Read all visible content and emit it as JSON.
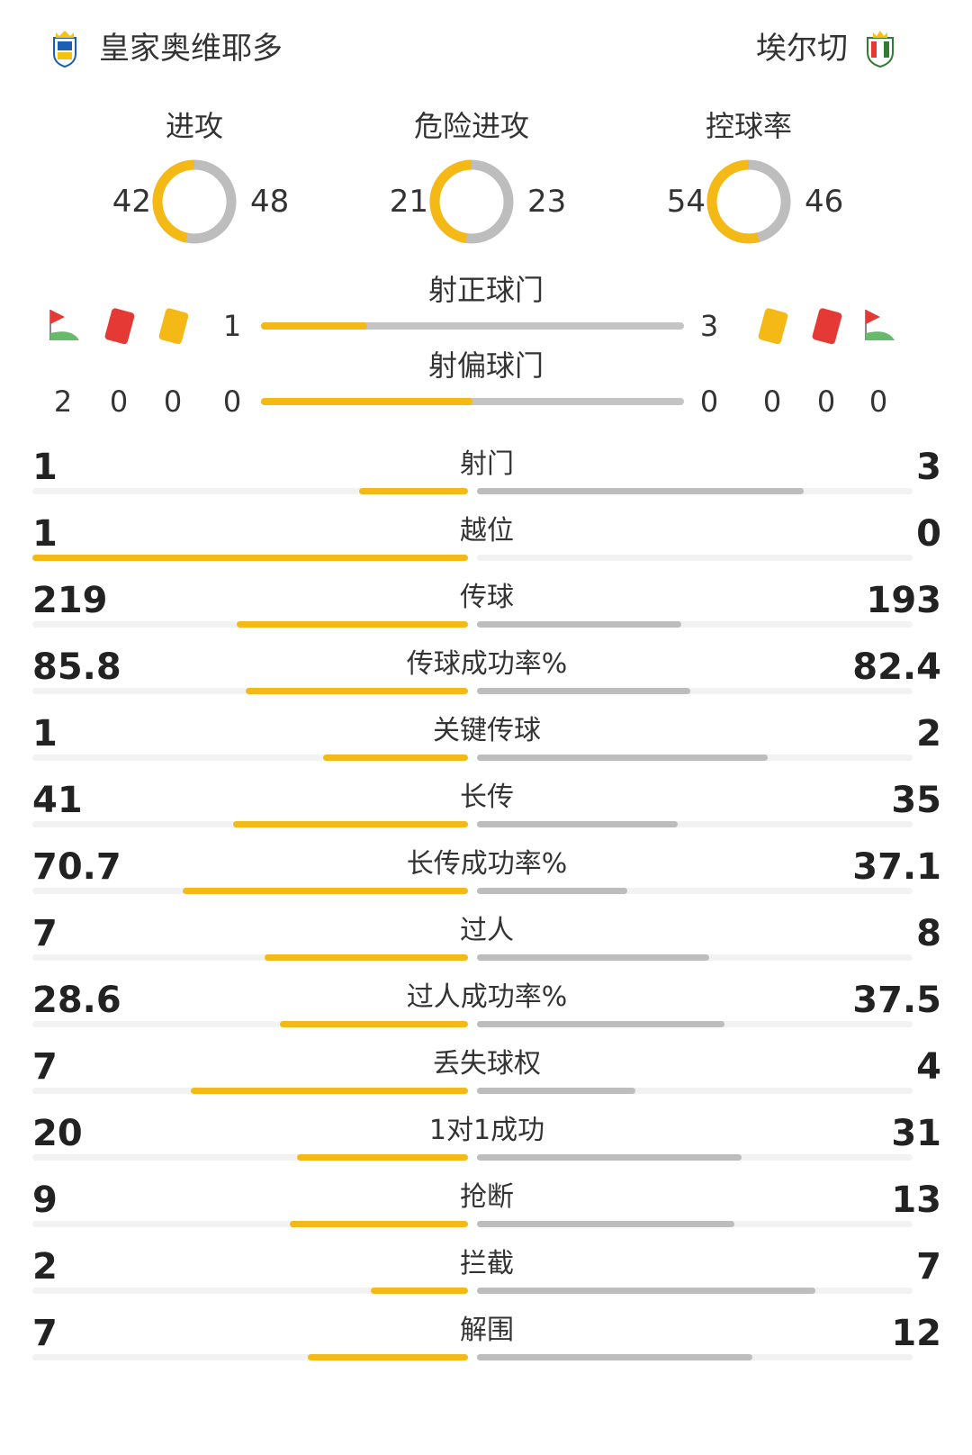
{
  "header": {
    "home_team": "皇家奥维耶多",
    "away_team": "埃尔切",
    "home_colors": [
      "#1a5fb4",
      "#f5c211"
    ],
    "away_colors": [
      "#2e7d32",
      "#e53935",
      "#f5c211"
    ]
  },
  "rings": [
    {
      "label": "进攻",
      "home": 42,
      "away": 48
    },
    {
      "label": "危险进攻",
      "home": 21,
      "away": 23
    },
    {
      "label": "控球率",
      "home": 54,
      "away": 46
    }
  ],
  "shots_on": {
    "label": "射正球门",
    "home": 1,
    "away": 3
  },
  "shots_off": {
    "label": "射偏球门",
    "home": 0,
    "away": 0
  },
  "cards": {
    "home": {
      "corners": 2,
      "red": 0,
      "yellow": 0
    },
    "away": {
      "yellow": 0,
      "red": 0,
      "corners": 0
    },
    "icons": [
      "corner-flag-icon",
      "red-card-icon",
      "yellow-card-icon"
    ]
  },
  "colors": {
    "home": "#f5b916",
    "away": "#bdbdbd",
    "red_card": "#e53935",
    "yellow_card": "#f5b916"
  },
  "stats": [
    {
      "label": "射门",
      "home": "1",
      "away": "3",
      "hv": 1,
      "av": 3
    },
    {
      "label": "越位",
      "home": "1",
      "away": "0",
      "hv": 1,
      "av": 0
    },
    {
      "label": "传球",
      "home": "219",
      "away": "193",
      "hv": 219,
      "av": 193
    },
    {
      "label": "传球成功率%",
      "home": "85.8",
      "away": "82.4",
      "hv": 85.8,
      "av": 82.4
    },
    {
      "label": "关键传球",
      "home": "1",
      "away": "2",
      "hv": 1,
      "av": 2
    },
    {
      "label": "长传",
      "home": "41",
      "away": "35",
      "hv": 41,
      "av": 35
    },
    {
      "label": "长传成功率%",
      "home": "70.7",
      "away": "37.1",
      "hv": 70.7,
      "av": 37.1
    },
    {
      "label": "过人",
      "home": "7",
      "away": "8",
      "hv": 7,
      "av": 8
    },
    {
      "label": "过人成功率%",
      "home": "28.6",
      "away": "37.5",
      "hv": 28.6,
      "av": 37.5
    },
    {
      "label": "丢失球权",
      "home": "7",
      "away": "4",
      "hv": 7,
      "av": 4
    },
    {
      "label": "1对1成功",
      "home": "20",
      "away": "31",
      "hv": 20,
      "av": 31
    },
    {
      "label": "抢断",
      "home": "9",
      "away": "13",
      "hv": 9,
      "av": 13
    },
    {
      "label": "拦截",
      "home": "2",
      "away": "7",
      "hv": 2,
      "av": 7
    },
    {
      "label": "解围",
      "home": "7",
      "away": "12",
      "hv": 7,
      "av": 12
    }
  ]
}
